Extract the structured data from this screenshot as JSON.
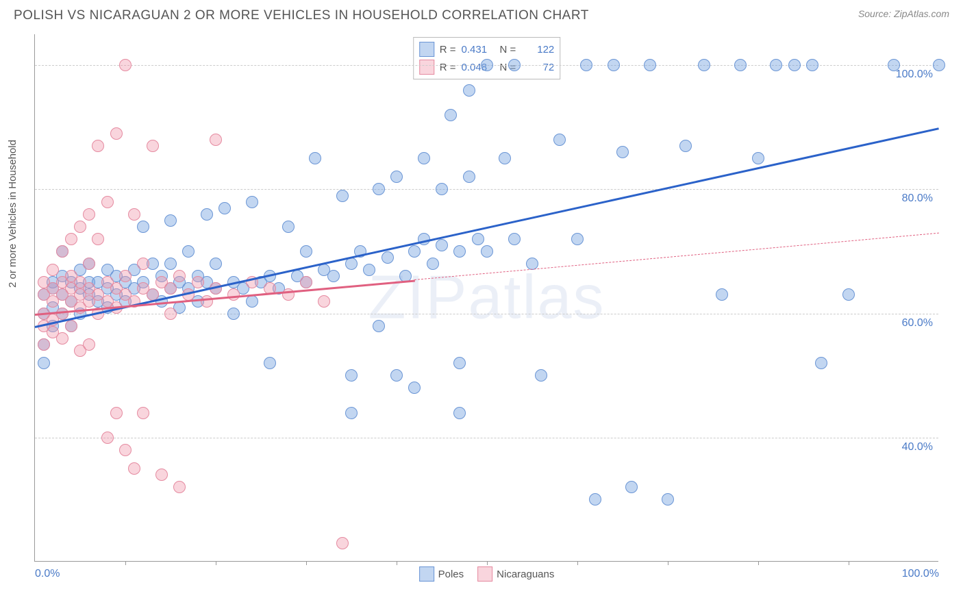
{
  "title": "POLISH VS NICARAGUAN 2 OR MORE VEHICLES IN HOUSEHOLD CORRELATION CHART",
  "source_prefix": "Source: ",
  "source": "ZipAtlas.com",
  "ylabel": "2 or more Vehicles in Household",
  "watermark": "ZIPatlas",
  "chart": {
    "type": "scatter",
    "xlim": [
      0,
      100
    ],
    "ylim": [
      20,
      105
    ],
    "yticks": [
      {
        "v": 40,
        "label": "40.0%"
      },
      {
        "v": 60,
        "label": "60.0%"
      },
      {
        "v": 80,
        "label": "80.0%"
      },
      {
        "v": 100,
        "label": "100.0%"
      }
    ],
    "xticks_major": [
      0,
      100
    ],
    "xticks_minor": [
      10,
      20,
      30,
      40,
      50,
      60,
      70,
      80,
      90
    ],
    "xtick_labels": [
      {
        "v": 0,
        "label": "0.0%"
      },
      {
        "v": 100,
        "label": "100.0%"
      }
    ],
    "background_color": "#ffffff",
    "grid_color": "#cccccc",
    "series": [
      {
        "name": "Poles",
        "color_fill": "rgba(120, 165, 225, 0.45)",
        "color_stroke": "#6a95d5",
        "line_color": "#2b62c9",
        "marker_r": 9,
        "R": "0.431",
        "N": "122",
        "trend": {
          "x1": 0,
          "y1": 58,
          "x2": 100,
          "y2": 90,
          "dashed_from": 100
        },
        "points": [
          [
            1,
            63
          ],
          [
            1,
            60
          ],
          [
            1,
            55
          ],
          [
            1,
            52
          ],
          [
            2,
            64
          ],
          [
            2,
            61
          ],
          [
            2,
            58
          ],
          [
            2,
            65
          ],
          [
            3,
            63
          ],
          [
            3,
            60
          ],
          [
            3,
            66
          ],
          [
            3,
            70
          ],
          [
            4,
            62
          ],
          [
            4,
            65
          ],
          [
            4,
            58
          ],
          [
            5,
            64
          ],
          [
            5,
            67
          ],
          [
            5,
            60
          ],
          [
            6,
            63
          ],
          [
            6,
            65
          ],
          [
            6,
            68
          ],
          [
            7,
            62
          ],
          [
            7,
            65
          ],
          [
            8,
            64
          ],
          [
            8,
            67
          ],
          [
            8,
            61
          ],
          [
            9,
            63
          ],
          [
            9,
            66
          ],
          [
            10,
            65
          ],
          [
            10,
            62
          ],
          [
            11,
            64
          ],
          [
            11,
            67
          ],
          [
            12,
            74
          ],
          [
            12,
            65
          ],
          [
            13,
            63
          ],
          [
            13,
            68
          ],
          [
            14,
            66
          ],
          [
            14,
            62
          ],
          [
            15,
            64
          ],
          [
            15,
            68
          ],
          [
            15,
            75
          ],
          [
            16,
            65
          ],
          [
            16,
            61
          ],
          [
            17,
            64
          ],
          [
            17,
            70
          ],
          [
            18,
            66
          ],
          [
            18,
            62
          ],
          [
            19,
            65
          ],
          [
            19,
            76
          ],
          [
            20,
            64
          ],
          [
            20,
            68
          ],
          [
            21,
            77
          ],
          [
            22,
            65
          ],
          [
            22,
            60
          ],
          [
            23,
            64
          ],
          [
            24,
            78
          ],
          [
            24,
            62
          ],
          [
            25,
            65
          ],
          [
            26,
            52
          ],
          [
            26,
            66
          ],
          [
            27,
            64
          ],
          [
            28,
            74
          ],
          [
            29,
            66
          ],
          [
            30,
            65
          ],
          [
            30,
            70
          ],
          [
            31,
            85
          ],
          [
            32,
            67
          ],
          [
            33,
            66
          ],
          [
            34,
            79
          ],
          [
            35,
            68
          ],
          [
            35,
            50
          ],
          [
            36,
            70
          ],
          [
            37,
            67
          ],
          [
            38,
            80
          ],
          [
            38,
            58
          ],
          [
            39,
            69
          ],
          [
            40,
            82
          ],
          [
            40,
            50
          ],
          [
            41,
            66
          ],
          [
            42,
            70
          ],
          [
            42,
            48
          ],
          [
            43,
            72
          ],
          [
            43,
            85
          ],
          [
            44,
            68
          ],
          [
            45,
            80
          ],
          [
            45,
            71
          ],
          [
            46,
            92
          ],
          [
            47,
            70
          ],
          [
            47,
            52
          ],
          [
            48,
            82
          ],
          [
            48,
            96
          ],
          [
            49,
            72
          ],
          [
            50,
            70
          ],
          [
            50,
            100
          ],
          [
            52,
            85
          ],
          [
            53,
            100
          ],
          [
            53,
            72
          ],
          [
            55,
            68
          ],
          [
            56,
            50
          ],
          [
            58,
            88
          ],
          [
            60,
            72
          ],
          [
            61,
            100
          ],
          [
            62,
            30
          ],
          [
            64,
            100
          ],
          [
            65,
            86
          ],
          [
            66,
            32
          ],
          [
            68,
            100
          ],
          [
            70,
            30
          ],
          [
            72,
            87
          ],
          [
            74,
            100
          ],
          [
            76,
            63
          ],
          [
            78,
            100
          ],
          [
            80,
            85
          ],
          [
            82,
            100
          ],
          [
            84,
            100
          ],
          [
            86,
            100
          ],
          [
            87,
            52
          ],
          [
            90,
            63
          ],
          [
            95,
            100
          ],
          [
            100,
            100
          ],
          [
            47,
            44
          ],
          [
            35,
            44
          ]
        ]
      },
      {
        "name": "Nicaraguans",
        "color_fill": "rgba(240, 150, 170, 0.40)",
        "color_stroke": "#e58aa0",
        "line_color": "#e06080",
        "marker_r": 9,
        "R": "0.048",
        "N": "72",
        "trend": {
          "x1": 0,
          "y1": 60,
          "x2": 100,
          "y2": 73,
          "dashed_from": 42
        },
        "points": [
          [
            1,
            60
          ],
          [
            1,
            63
          ],
          [
            1,
            58
          ],
          [
            1,
            55
          ],
          [
            1,
            65
          ],
          [
            2,
            62
          ],
          [
            2,
            64
          ],
          [
            2,
            57
          ],
          [
            2,
            59
          ],
          [
            2,
            67
          ],
          [
            3,
            63
          ],
          [
            3,
            60
          ],
          [
            3,
            65
          ],
          [
            3,
            70
          ],
          [
            3,
            56
          ],
          [
            4,
            62
          ],
          [
            4,
            64
          ],
          [
            4,
            58
          ],
          [
            4,
            66
          ],
          [
            4,
            72
          ],
          [
            5,
            63
          ],
          [
            5,
            61
          ],
          [
            5,
            65
          ],
          [
            5,
            74
          ],
          [
            5,
            54
          ],
          [
            6,
            62
          ],
          [
            6,
            64
          ],
          [
            6,
            76
          ],
          [
            6,
            55
          ],
          [
            6,
            68
          ],
          [
            7,
            63
          ],
          [
            7,
            60
          ],
          [
            7,
            72
          ],
          [
            7,
            87
          ],
          [
            8,
            62
          ],
          [
            8,
            65
          ],
          [
            8,
            78
          ],
          [
            8,
            40
          ],
          [
            9,
            61
          ],
          [
            9,
            64
          ],
          [
            9,
            89
          ],
          [
            9,
            44
          ],
          [
            10,
            63
          ],
          [
            10,
            66
          ],
          [
            10,
            100
          ],
          [
            10,
            38
          ],
          [
            11,
            62
          ],
          [
            11,
            76
          ],
          [
            11,
            35
          ],
          [
            12,
            64
          ],
          [
            12,
            68
          ],
          [
            12,
            44
          ],
          [
            13,
            63
          ],
          [
            13,
            87
          ],
          [
            14,
            65
          ],
          [
            14,
            34
          ],
          [
            15,
            64
          ],
          [
            15,
            60
          ],
          [
            16,
            66
          ],
          [
            16,
            32
          ],
          [
            17,
            63
          ],
          [
            18,
            65
          ],
          [
            19,
            62
          ],
          [
            20,
            64
          ],
          [
            20,
            88
          ],
          [
            22,
            63
          ],
          [
            24,
            65
          ],
          [
            26,
            64
          ],
          [
            28,
            63
          ],
          [
            30,
            65
          ],
          [
            32,
            62
          ],
          [
            34,
            23
          ]
        ]
      }
    ]
  },
  "legend_bottom": [
    {
      "label": "Poles",
      "fill": "rgba(120,165,225,0.45)",
      "stroke": "#6a95d5"
    },
    {
      "label": "Nicaraguans",
      "fill": "rgba(240,150,170,0.40)",
      "stroke": "#e58aa0"
    }
  ]
}
